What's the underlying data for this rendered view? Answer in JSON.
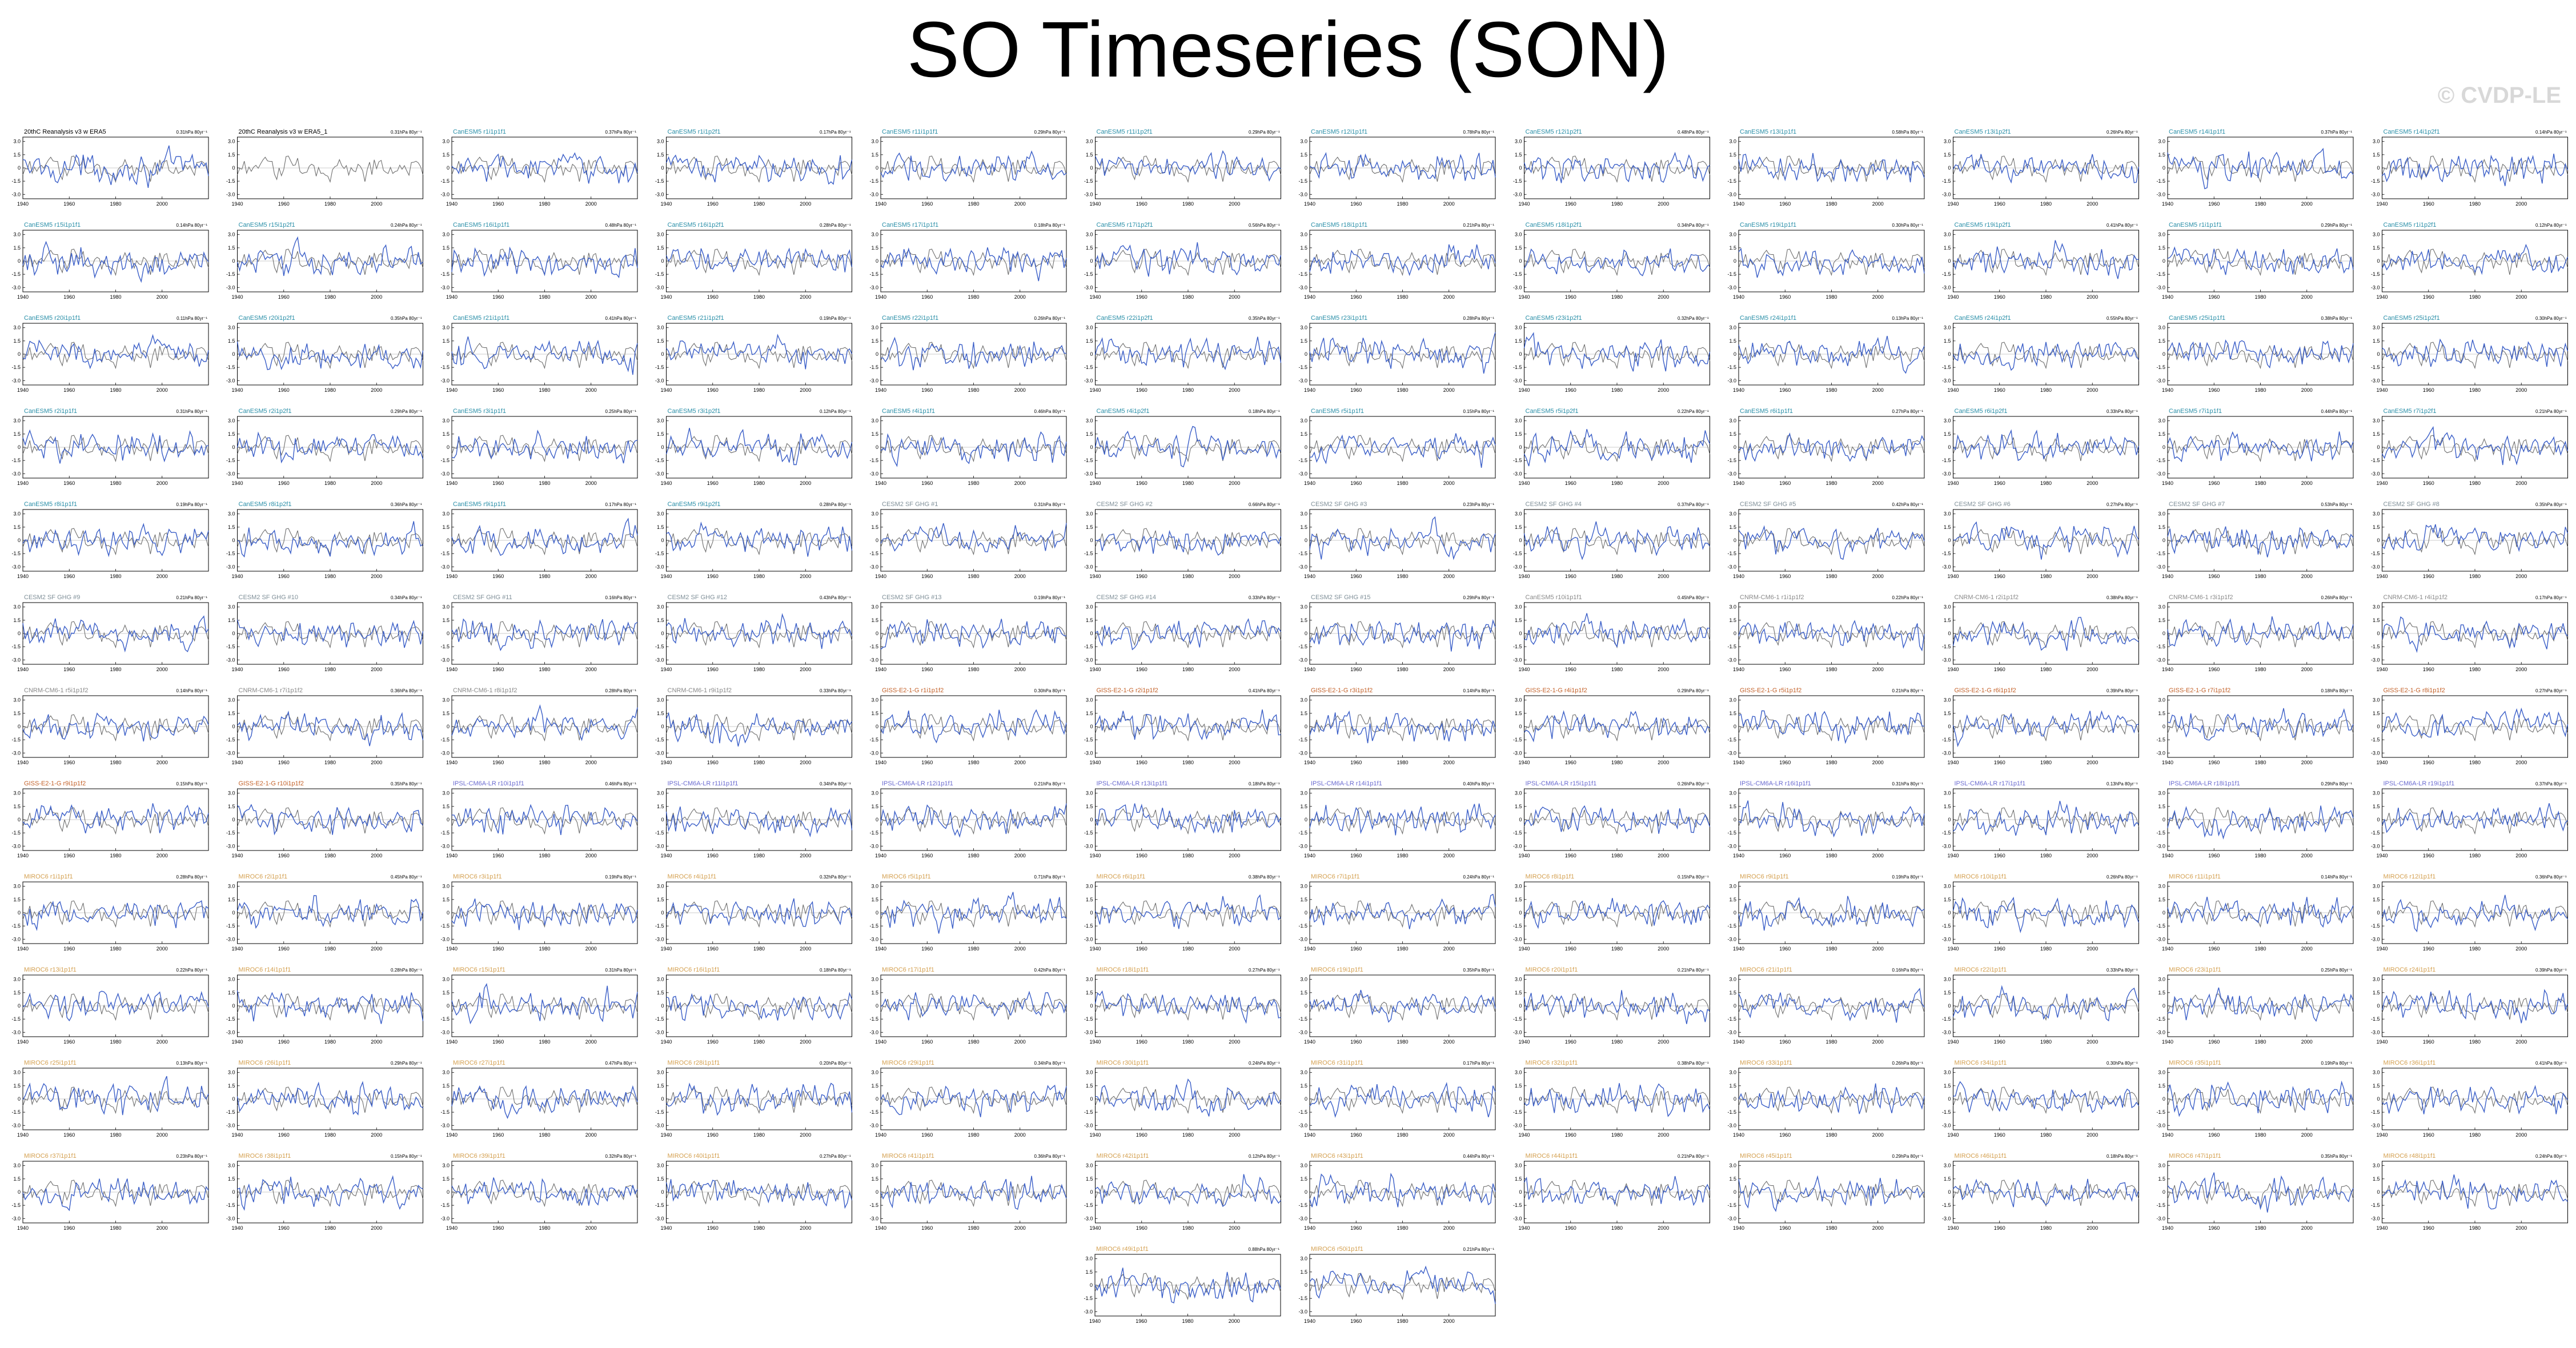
{
  "title": "SO Timeseries (SON)",
  "watermark": "© CVDP-LE",
  "colors": {
    "obs_line": "#6f6f6f",
    "model_line": "#3b5fc8",
    "obs_title": "#000000",
    "cesm_title": "#2a8fa8",
    "cesm2_title": "#7f8f98",
    "canesm_title": "#8a8a8a",
    "giss_title": "#c4622a",
    "ipsl_title": "#6b6bd0",
    "mpi_title": "#d4a050"
  },
  "chart_data": {
    "type": "line",
    "layout": "panel-grid",
    "years_range": [
      1940,
      2020
    ],
    "x_ticks": [
      "1940",
      "1960",
      "1980",
      "2000"
    ],
    "y_ticks": [
      "3.0",
      "1.5",
      "0",
      "-1.5",
      "-3.0"
    ],
    "y_range": [
      -3.5,
      3.5
    ],
    "rows": 13,
    "cols": 12,
    "panels": [
      {
        "title": "20thC Reanalysis v3 w ERA5",
        "trend": "0.31hPa 80yr⁻¹",
        "group": "obs"
      },
      {
        "title": "20thC Reanalysis v3 w ERA5_1",
        "trend": "0.31hPa 80yr⁻¹",
        "group": "obs"
      },
      {
        "title": "CanESM5 r1i1p1f1",
        "trend": "0.37hPa 80yr⁻¹",
        "group": "cesm"
      },
      {
        "title": "CanESM5 r1i1p2f1",
        "trend": "0.17hPa 80yr⁻¹",
        "group": "cesm"
      },
      {
        "title": "CanESM5 r11i1p1f1",
        "trend": "0.29hPa 80yr⁻¹",
        "group": "cesm"
      },
      {
        "title": "CanESM5 r11i1p2f1",
        "trend": "0.29hPa 80yr⁻¹",
        "group": "cesm"
      },
      {
        "title": "CanESM5 r12i1p1f1",
        "trend": "0.78hPa 80yr⁻¹",
        "group": "cesm"
      },
      {
        "title": "CanESM5 r12i1p2f1",
        "trend": "0.48hPa 80yr⁻¹",
        "group": "cesm"
      },
      {
        "title": "CanESM5 r13i1p1f1",
        "trend": "0.58hPa 80yr⁻¹",
        "group": "cesm"
      },
      {
        "title": "CanESM5 r13i1p2f1",
        "trend": "0.26hPa 80yr⁻¹",
        "group": "cesm"
      },
      {
        "title": "CanESM5 r14i1p1f1",
        "trend": "0.37hPa 80yr⁻¹",
        "group": "cesm"
      },
      {
        "title": "CanESM5 r14i1p2f1",
        "trend": "0.14hPa 80yr⁻¹",
        "group": "cesm"
      },
      {
        "title": "CanESM5 r15i1p1f1",
        "trend": "0.14hPa 80yr⁻¹",
        "group": "cesm"
      },
      {
        "title": "CanESM5 r15i1p2f1",
        "trend": "0.24hPa 80yr⁻¹",
        "group": "cesm"
      },
      {
        "title": "CanESM5 r16i1p1f1",
        "trend": "0.48hPa 80yr⁻¹",
        "group": "cesm"
      },
      {
        "title": "CanESM5 r16i1p2f1",
        "trend": "0.28hPa 80yr⁻¹",
        "group": "cesm"
      },
      {
        "title": "CanESM5 r17i1p1f1",
        "trend": "0.18hPa 80yr⁻¹",
        "group": "cesm"
      },
      {
        "title": "CanESM5 r17i1p2f1",
        "trend": "0.56hPa 80yr⁻¹",
        "group": "cesm"
      },
      {
        "title": "CanESM5 r18i1p1f1",
        "trend": "0.21hPa 80yr⁻¹",
        "group": "cesm"
      },
      {
        "title": "CanESM5 r18i1p2f1",
        "trend": "0.34hPa 80yr⁻¹",
        "group": "cesm"
      },
      {
        "title": "CanESM5 r19i1p1f1",
        "trend": "0.30hPa 80yr⁻¹",
        "group": "cesm"
      },
      {
        "title": "CanESM5 r19i1p2f1",
        "trend": "0.41hPa 80yr⁻¹",
        "group": "cesm"
      },
      {
        "title": "CanESM5 r1i1p1f1",
        "trend": "0.29hPa 80yr⁻¹",
        "group": "cesm"
      },
      {
        "title": "CanESM5 r1i1p2f1",
        "trend": "0.12hPa 80yr⁻¹",
        "group": "cesm"
      },
      {
        "title": "CanESM5 r20i1p1f1",
        "trend": "0.11hPa 80yr⁻¹",
        "group": "cesm"
      },
      {
        "title": "CanESM5 r20i1p2f1",
        "trend": "0.35hPa 80yr⁻¹",
        "group": "cesm"
      },
      {
        "title": "CanESM5 r21i1p1f1",
        "trend": "0.41hPa 80yr⁻¹",
        "group": "cesm"
      },
      {
        "title": "CanESM5 r21i1p2f1",
        "trend": "0.19hPa 80yr⁻¹",
        "group": "cesm"
      },
      {
        "title": "CanESM5 r22i1p1f1",
        "trend": "0.26hPa 80yr⁻¹",
        "group": "cesm"
      },
      {
        "title": "CanESM5 r22i1p2f1",
        "trend": "0.35hPa 80yr⁻¹",
        "group": "cesm"
      },
      {
        "title": "CanESM5 r23i1p1f1",
        "trend": "0.28hPa 80yr⁻¹",
        "group": "cesm"
      },
      {
        "title": "CanESM5 r23i1p2f1",
        "trend": "0.32hPa 80yr⁻¹",
        "group": "cesm"
      },
      {
        "title": "CanESM5 r24i1p1f1",
        "trend": "0.13hPa 80yr⁻¹",
        "group": "cesm"
      },
      {
        "title": "CanESM5 r24i1p2f1",
        "trend": "0.55hPa 80yr⁻¹",
        "group": "cesm"
      },
      {
        "title": "CanESM5 r25i1p1f1",
        "trend": "0.38hPa 80yr⁻¹",
        "group": "cesm"
      },
      {
        "title": "CanESM5 r25i1p2f1",
        "trend": "0.30hPa 80yr⁻¹",
        "group": "cesm"
      },
      {
        "title": "CanESM5 r2i1p1f1",
        "trend": "0.31hPa 80yr⁻¹",
        "group": "cesm"
      },
      {
        "title": "CanESM5 r2i1p2f1",
        "trend": "0.29hPa 80yr⁻¹",
        "group": "cesm"
      },
      {
        "title": "CanESM5 r3i1p1f1",
        "trend": "0.25hPa 80yr⁻¹",
        "group": "cesm"
      },
      {
        "title": "CanESM5 r3i1p2f1",
        "trend": "0.12hPa 80yr⁻¹",
        "group": "cesm"
      },
      {
        "title": "CanESM5 r4i1p1f1",
        "trend": "0.46hPa 80yr⁻¹",
        "group": "cesm"
      },
      {
        "title": "CanESM5 r4i1p2f1",
        "trend": "0.18hPa 80yr⁻¹",
        "group": "cesm"
      },
      {
        "title": "CanESM5 r5i1p1f1",
        "trend": "0.15hPa 80yr⁻¹",
        "group": "cesm"
      },
      {
        "title": "CanESM5 r5i1p2f1",
        "trend": "0.22hPa 80yr⁻¹",
        "group": "cesm"
      },
      {
        "title": "CanESM5 r6i1p1f1",
        "trend": "0.27hPa 80yr⁻¹",
        "group": "cesm"
      },
      {
        "title": "CanESM5 r6i1p2f1",
        "trend": "0.33hPa 80yr⁻¹",
        "group": "cesm"
      },
      {
        "title": "CanESM5 r7i1p1f1",
        "trend": "0.44hPa 80yr⁻¹",
        "group": "cesm"
      },
      {
        "title": "CanESM5 r7i1p2f1",
        "trend": "0.21hPa 80yr⁻¹",
        "group": "cesm"
      },
      {
        "title": "CanESM5 r8i1p1f1",
        "trend": "0.19hPa 80yr⁻¹",
        "group": "cesm"
      },
      {
        "title": "CanESM5 r8i1p2f1",
        "trend": "0.36hPa 80yr⁻¹",
        "group": "cesm"
      },
      {
        "title": "CanESM5 r9i1p1f1",
        "trend": "0.17hPa 80yr⁻¹",
        "group": "cesm"
      },
      {
        "title": "CanESM5 r9i1p2f1",
        "trend": "0.28hPa 80yr⁻¹",
        "group": "cesm"
      },
      {
        "title": "CESM2 SF GHG #1",
        "trend": "0.31hPa 80yr⁻¹",
        "group": "cesm2"
      },
      {
        "title": "CESM2 SF GHG #2",
        "trend": "0.66hPa 80yr⁻¹",
        "group": "cesm2"
      },
      {
        "title": "CESM2 SF GHG #3",
        "trend": "0.23hPa 80yr⁻¹",
        "group": "cesm2"
      },
      {
        "title": "CESM2 SF GHG #4",
        "trend": "0.37hPa 80yr⁻¹",
        "group": "cesm2"
      },
      {
        "title": "CESM2 SF GHG #5",
        "trend": "0.42hPa 80yr⁻¹",
        "group": "cesm2"
      },
      {
        "title": "CESM2 SF GHG #6",
        "trend": "0.27hPa 80yr⁻¹",
        "group": "cesm2"
      },
      {
        "title": "CESM2 SF GHG #7",
        "trend": "0.53hPa 80yr⁻¹",
        "group": "cesm2"
      },
      {
        "title": "CESM2 SF GHG #8",
        "trend": "0.35hPa 80yr⁻¹",
        "group": "cesm2"
      },
      {
        "title": "CESM2 SF GHG #9",
        "trend": "0.21hPa 80yr⁻¹",
        "group": "cesm2"
      },
      {
        "title": "CESM2 SF GHG #10",
        "trend": "0.34hPa 80yr⁻¹",
        "group": "cesm2"
      },
      {
        "title": "CESM2 SF GHG #11",
        "trend": "0.16hPa 80yr⁻¹",
        "group": "cesm2"
      },
      {
        "title": "CESM2 SF GHG #12",
        "trend": "0.43hPa 80yr⁻¹",
        "group": "cesm2"
      },
      {
        "title": "CESM2 SF GHG #13",
        "trend": "0.19hPa 80yr⁻¹",
        "group": "cesm2"
      },
      {
        "title": "CESM2 SF GHG #14",
        "trend": "0.33hPa 80yr⁻¹",
        "group": "cesm2"
      },
      {
        "title": "CESM2 SF GHG #15",
        "trend": "0.29hPa 80yr⁻¹",
        "group": "cesm2"
      },
      {
        "title": "CanESM5 r10i1p1f1",
        "trend": "0.45hPa 80yr⁻¹",
        "group": "canesm"
      },
      {
        "title": "CNRM-CM6-1 r1i1p1f2",
        "trend": "0.22hPa 80yr⁻¹",
        "group": "canesm"
      },
      {
        "title": "CNRM-CM6-1 r2i1p1f2",
        "trend": "0.38hPa 80yr⁻¹",
        "group": "canesm"
      },
      {
        "title": "CNRM-CM6-1 r3i1p1f2",
        "trend": "0.26hPa 80yr⁻¹",
        "group": "canesm"
      },
      {
        "title": "CNRM-CM6-1 r4i1p1f2",
        "trend": "0.17hPa 80yr⁻¹",
        "group": "canesm"
      },
      {
        "title": "CNRM-CM6-1 r5i1p1f2",
        "trend": "0.14hPa 80yr⁻¹",
        "group": "canesm"
      },
      {
        "title": "CNRM-CM6-1 r7i1p1f2",
        "trend": "0.36hPa 80yr⁻¹",
        "group": "canesm"
      },
      {
        "title": "CNRM-CM6-1 r8i1p1f2",
        "trend": "0.28hPa 80yr⁻¹",
        "group": "canesm"
      },
      {
        "title": "CNRM-CM6-1 r9i1p1f2",
        "trend": "0.33hPa 80yr⁻¹",
        "group": "canesm"
      },
      {
        "title": "GISS-E2-1-G r1i1p1f2",
        "trend": "0.30hPa 80yr⁻¹",
        "group": "giss"
      },
      {
        "title": "GISS-E2-1-G r2i1p1f2",
        "trend": "0.41hPa 80yr⁻¹",
        "group": "giss"
      },
      {
        "title": "GISS-E2-1-G r3i1p1f2",
        "trend": "0.14hPa 80yr⁻¹",
        "group": "giss"
      },
      {
        "title": "GISS-E2-1-G r4i1p1f2",
        "trend": "0.29hPa 80yr⁻¹",
        "group": "giss"
      },
      {
        "title": "GISS-E2-1-G r5i1p1f2",
        "trend": "0.21hPa 80yr⁻¹",
        "group": "giss"
      },
      {
        "title": "GISS-E2-1-G r6i1p1f2",
        "trend": "0.39hPa 80yr⁻¹",
        "group": "giss"
      },
      {
        "title": "GISS-E2-1-G r7i1p1f2",
        "trend": "0.18hPa 80yr⁻¹",
        "group": "giss"
      },
      {
        "title": "GISS-E2-1-G r8i1p1f2",
        "trend": "0.27hPa 80yr⁻¹",
        "group": "giss"
      },
      {
        "title": "GISS-E2-1-G r9i1p1f2",
        "trend": "0.15hPa 80yr⁻¹",
        "group": "giss"
      },
      {
        "title": "GISS-E2-1-G r10i1p1f2",
        "trend": "0.35hPa 80yr⁻¹",
        "group": "giss"
      },
      {
        "title": "IPSL-CM6A-LR r10i1p1f1",
        "trend": "0.46hPa 80yr⁻¹",
        "group": "ipsl"
      },
      {
        "title": "IPSL-CM6A-LR r11i1p1f1",
        "trend": "0.34hPa 80yr⁻¹",
        "group": "ipsl"
      },
      {
        "title": "IPSL-CM6A-LR r12i1p1f1",
        "trend": "0.21hPa 80yr⁻¹",
        "group": "ipsl"
      },
      {
        "title": "IPSL-CM6A-LR r13i1p1f1",
        "trend": "0.18hPa 80yr⁻¹",
        "group": "ipsl"
      },
      {
        "title": "IPSL-CM6A-LR r14i1p1f1",
        "trend": "0.40hPa 80yr⁻¹",
        "group": "ipsl"
      },
      {
        "title": "IPSL-CM6A-LR r15i1p1f1",
        "trend": "0.26hPa 80yr⁻¹",
        "group": "ipsl"
      },
      {
        "title": "IPSL-CM6A-LR r16i1p1f1",
        "trend": "0.31hPa 80yr⁻¹",
        "group": "ipsl"
      },
      {
        "title": "IPSL-CM6A-LR r17i1p1f1",
        "trend": "0.13hPa 80yr⁻¹",
        "group": "ipsl"
      },
      {
        "title": "IPSL-CM6A-LR r18i1p1f1",
        "trend": "0.29hPa 80yr⁻¹",
        "group": "ipsl"
      },
      {
        "title": "IPSL-CM6A-LR r19i1p1f1",
        "trend": "0.37hPa 80yr⁻¹",
        "group": "ipsl"
      },
      {
        "title": "MIROC6 r1i1p1f1",
        "trend": "0.28hPa 80yr⁻¹",
        "group": "mpi"
      },
      {
        "title": "MIROC6 r2i1p1f1",
        "trend": "0.45hPa 80yr⁻¹",
        "group": "mpi"
      },
      {
        "title": "MIROC6 r3i1p1f1",
        "trend": "0.19hPa 80yr⁻¹",
        "group": "mpi"
      },
      {
        "title": "MIROC6 r4i1p1f1",
        "trend": "0.32hPa 80yr⁻¹",
        "group": "mpi"
      },
      {
        "title": "MIROC6 r5i1p1f1",
        "trend": "0.71hPa 80yr⁻¹",
        "group": "mpi"
      },
      {
        "title": "MIROC6 r6i1p1f1",
        "trend": "0.38hPa 80yr⁻¹",
        "group": "mpi"
      },
      {
        "title": "MIROC6 r7i1p1f1",
        "trend": "0.24hPa 80yr⁻¹",
        "group": "mpi"
      },
      {
        "title": "MIROC6 r8i1p1f1",
        "trend": "0.15hPa 80yr⁻¹",
        "group": "mpi"
      },
      {
        "title": "MIROC6 r9i1p1f1",
        "trend": "0.19hPa 80yr⁻¹",
        "group": "mpi"
      },
      {
        "title": "MIROC6 r10i1p1f1",
        "trend": "0.26hPa 80yr⁻¹",
        "group": "mpi"
      },
      {
        "title": "MIROC6 r11i1p1f1",
        "trend": "0.14hPa 80yr⁻¹",
        "group": "mpi"
      },
      {
        "title": "MIROC6 r12i1p1f1",
        "trend": "0.36hPa 80yr⁻¹",
        "group": "mpi"
      },
      {
        "title": "MIROC6 r13i1p1f1",
        "trend": "0.22hPa 80yr⁻¹",
        "group": "mpi"
      },
      {
        "title": "MIROC6 r14i1p1f1",
        "trend": "0.28hPa 80yr⁻¹",
        "group": "mpi"
      },
      {
        "title": "MIROC6 r15i1p1f1",
        "trend": "0.31hPa 80yr⁻¹",
        "group": "mpi"
      },
      {
        "title": "MIROC6 r16i1p1f1",
        "trend": "0.18hPa 80yr⁻¹",
        "group": "mpi"
      },
      {
        "title": "MIROC6 r17i1p1f1",
        "trend": "0.42hPa 80yr⁻¹",
        "group": "mpi"
      },
      {
        "title": "MIROC6 r18i1p1f1",
        "trend": "0.27hPa 80yr⁻¹",
        "group": "mpi"
      },
      {
        "title": "MIROC6 r19i1p1f1",
        "trend": "0.35hPa 80yr⁻¹",
        "group": "mpi"
      },
      {
        "title": "MIROC6 r20i1p1f1",
        "trend": "0.21hPa 80yr⁻¹",
        "group": "mpi"
      },
      {
        "title": "MIROC6 r21i1p1f1",
        "trend": "0.16hPa 80yr⁻¹",
        "group": "mpi"
      },
      {
        "title": "MIROC6 r22i1p1f1",
        "trend": "0.33hPa 80yr⁻¹",
        "group": "mpi"
      },
      {
        "title": "MIROC6 r23i1p1f1",
        "trend": "0.25hPa 80yr⁻¹",
        "group": "mpi"
      },
      {
        "title": "MIROC6 r24i1p1f1",
        "trend": "0.39hPa 80yr⁻¹",
        "group": "mpi"
      },
      {
        "title": "MIROC6 r25i1p1f1",
        "trend": "0.13hPa 80yr⁻¹",
        "group": "mpi"
      },
      {
        "title": "MIROC6 r26i1p1f1",
        "trend": "0.29hPa 80yr⁻¹",
        "group": "mpi"
      },
      {
        "title": "MIROC6 r27i1p1f1",
        "trend": "0.47hPa 80yr⁻¹",
        "group": "mpi"
      },
      {
        "title": "MIROC6 r28i1p1f1",
        "trend": "0.20hPa 80yr⁻¹",
        "group": "mpi"
      },
      {
        "title": "MIROC6 r29i1p1f1",
        "trend": "0.34hPa 80yr⁻¹",
        "group": "mpi"
      },
      {
        "title": "MIROC6 r30i1p1f1",
        "trend": "0.24hPa 80yr⁻¹",
        "group": "mpi"
      },
      {
        "title": "MIROC6 r31i1p1f1",
        "trend": "0.17hPa 80yr⁻¹",
        "group": "mpi"
      },
      {
        "title": "MIROC6 r32i1p1f1",
        "trend": "0.38hPa 80yr⁻¹",
        "group": "mpi"
      },
      {
        "title": "MIROC6 r33i1p1f1",
        "trend": "0.26hPa 80yr⁻¹",
        "group": "mpi"
      },
      {
        "title": "MIROC6 r34i1p1f1",
        "trend": "0.30hPa 80yr⁻¹",
        "group": "mpi"
      },
      {
        "title": "MIROC6 r35i1p1f1",
        "trend": "0.19hPa 80yr⁻¹",
        "group": "mpi"
      },
      {
        "title": "MIROC6 r36i1p1f1",
        "trend": "0.41hPa 80yr⁻¹",
        "group": "mpi"
      },
      {
        "title": "MIROC6 r37i1p1f1",
        "trend": "0.23hPa 80yr⁻¹",
        "group": "mpi"
      },
      {
        "title": "MIROC6 r38i1p1f1",
        "trend": "0.15hPa 80yr⁻¹",
        "group": "mpi"
      },
      {
        "title": "MIROC6 r39i1p1f1",
        "trend": "0.32hPa 80yr⁻¹",
        "group": "mpi"
      },
      {
        "title": "MIROC6 r40i1p1f1",
        "trend": "0.27hPa 80yr⁻¹",
        "group": "mpi"
      },
      {
        "title": "MIROC6 r41i1p1f1",
        "trend": "0.36hPa 80yr⁻¹",
        "group": "mpi"
      },
      {
        "title": "MIROC6 r42i1p1f1",
        "trend": "0.12hPa 80yr⁻¹",
        "group": "mpi"
      },
      {
        "title": "MIROC6 r43i1p1f1",
        "trend": "0.44hPa 80yr⁻¹",
        "group": "mpi"
      },
      {
        "title": "MIROC6 r44i1p1f1",
        "trend": "0.21hPa 80yr⁻¹",
        "group": "mpi"
      },
      {
        "title": "MIROC6 r45i1p1f1",
        "trend": "0.29hPa 80yr⁻¹",
        "group": "mpi"
      },
      {
        "title": "MIROC6 r46i1p1f1",
        "trend": "0.18hPa 80yr⁻¹",
        "group": "mpi"
      },
      {
        "title": "MIROC6 r47i1p1f1",
        "trend": "0.35hPa 80yr⁻¹",
        "group": "mpi"
      },
      {
        "title": "MIROC6 r48i1p1f1",
        "trend": "0.24hPa 80yr⁻¹",
        "group": "mpi"
      },
      {
        "title": "MIROC6 r49i1p1f1",
        "trend": "0.88hPa 80yr⁻¹",
        "group": "mpi"
      },
      {
        "title": "MIROC6 r50i1p1f1",
        "trend": "0.21hPa 80yr⁻¹",
        "group": "mpi"
      }
    ]
  }
}
